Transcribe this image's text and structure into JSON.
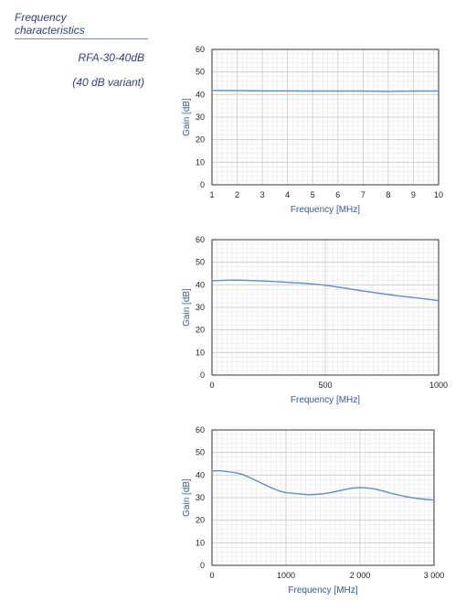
{
  "side_panel": {
    "title_line1": "Frequency",
    "title_line2": "characteristics",
    "model": "RFA-30-40dB",
    "variant": "(40 dB variant)"
  },
  "colors": {
    "curve": "#5b8fd0",
    "grid_minor": "#e3e3e3",
    "grid_major": "#c9c9c9",
    "axis_label": "#2d5a9e",
    "title": "#2d3f8a"
  },
  "chart_data": [
    {
      "type": "line",
      "xlabel": "Frequency [MHz]",
      "ylabel": "Gain [dB]",
      "xlim": [
        1,
        10
      ],
      "ylim": [
        0,
        60
      ],
      "x_ticks": [
        1,
        2,
        3,
        4,
        5,
        6,
        7,
        8,
        9,
        10
      ],
      "x_tick_labels": [
        "1",
        "2",
        "3",
        "4",
        "5",
        "6",
        "7",
        "8",
        "9",
        "10"
      ],
      "y_ticks": [
        0,
        10,
        20,
        30,
        40,
        50,
        60
      ],
      "grid": true,
      "series": [
        {
          "x": [
            1,
            2,
            3,
            4,
            5,
            6,
            7,
            8,
            9,
            10
          ],
          "y": [
            41.8,
            41.7,
            41.6,
            41.6,
            41.5,
            41.5,
            41.5,
            41.4,
            41.5,
            41.5
          ]
        }
      ]
    },
    {
      "type": "line",
      "xlabel": "Frequency [MHz]",
      "ylabel": "Gain [dB]",
      "xlim": [
        0,
        1000
      ],
      "ylim": [
        0,
        60
      ],
      "x_ticks": [
        0,
        500,
        1000
      ],
      "x_tick_labels": [
        "0",
        "500",
        "1000"
      ],
      "y_ticks": [
        0,
        10,
        20,
        30,
        40,
        50,
        60
      ],
      "grid": true,
      "series": [
        {
          "x": [
            0,
            50,
            100,
            150,
            200,
            250,
            300,
            350,
            400,
            450,
            500,
            550,
            600,
            650,
            700,
            750,
            800,
            850,
            900,
            950,
            1000
          ],
          "y": [
            41.8,
            42.0,
            42.1,
            42.0,
            41.8,
            41.6,
            41.3,
            41.0,
            40.7,
            40.3,
            39.8,
            39.1,
            38.3,
            37.5,
            36.8,
            36.1,
            35.4,
            34.8,
            34.2,
            33.6,
            33.0
          ]
        }
      ]
    },
    {
      "type": "line",
      "xlabel": "Frequency [MHz]",
      "ylabel": "Gain [dB]",
      "xlim": [
        0,
        3000
      ],
      "ylim": [
        0,
        60
      ],
      "x_ticks": [
        0,
        1000,
        2000,
        3000
      ],
      "x_tick_labels": [
        "0",
        "1000",
        "2 000",
        "3 000"
      ],
      "y_ticks": [
        0,
        10,
        20,
        30,
        40,
        50,
        60
      ],
      "grid": true,
      "series": [
        {
          "x": [
            0,
            100,
            200,
            300,
            400,
            500,
            600,
            700,
            800,
            900,
            1000,
            1100,
            1200,
            1300,
            1400,
            1500,
            1600,
            1700,
            1800,
            1900,
            2000,
            2100,
            2200,
            2300,
            2400,
            2500,
            2600,
            2700,
            2800,
            2900,
            3000
          ],
          "y": [
            41.8,
            41.9,
            41.6,
            41.1,
            40.4,
            39.1,
            37.5,
            35.9,
            34.4,
            33.1,
            32.2,
            31.9,
            31.6,
            31.3,
            31.4,
            31.7,
            32.2,
            32.9,
            33.6,
            34.2,
            34.5,
            34.3,
            33.8,
            33.0,
            32.1,
            31.3,
            30.6,
            30.0,
            29.5,
            29.2,
            28.9
          ]
        }
      ]
    }
  ]
}
